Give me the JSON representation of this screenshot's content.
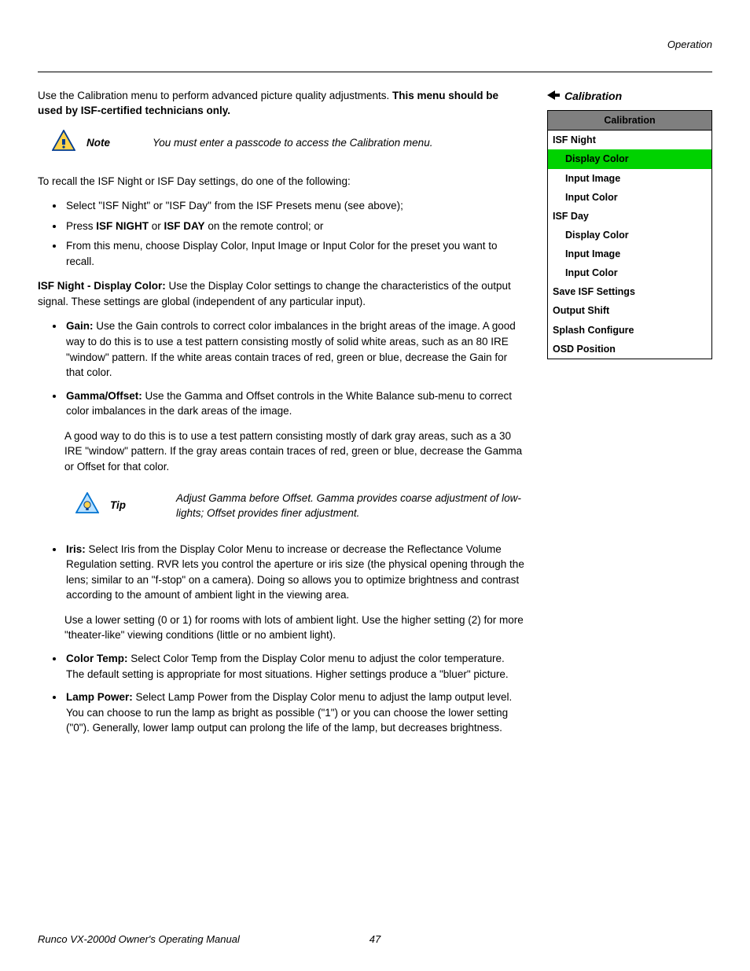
{
  "header": {
    "section": "Operation"
  },
  "sideHeading": "Calibration",
  "menu": {
    "title": "Calibration",
    "items": [
      {
        "label": "ISF Night",
        "indent": 0,
        "highlight": false
      },
      {
        "label": "Display Color",
        "indent": 1,
        "highlight": true
      },
      {
        "label": "Input Image",
        "indent": 1,
        "highlight": false
      },
      {
        "label": "Input Color",
        "indent": 1,
        "highlight": false
      },
      {
        "label": "ISF Day",
        "indent": 0,
        "highlight": false
      },
      {
        "label": "Display Color",
        "indent": 1,
        "highlight": false
      },
      {
        "label": "Input Image",
        "indent": 1,
        "highlight": false
      },
      {
        "label": "Input Color",
        "indent": 1,
        "highlight": false
      },
      {
        "label": "Save ISF Settings",
        "indent": 0,
        "highlight": false
      },
      {
        "label": "Output Shift",
        "indent": 0,
        "highlight": false
      },
      {
        "label": "Splash Configure",
        "indent": 0,
        "highlight": false
      },
      {
        "label": "OSD Position",
        "indent": 0,
        "highlight": false
      }
    ]
  },
  "intro": {
    "lead": "Use the Calibration menu to perform advanced picture quality adjustments. ",
    "bold": "This menu should be used by ISF-certified technicians only."
  },
  "note": {
    "label": "Note",
    "text": "You must enter a passcode to access the Calibration menu."
  },
  "recall": {
    "lead": "To recall the ISF Night or ISF Day settings, do one of the following:",
    "b1": "Select \"ISF Night\" or \"ISF Day\" from the ISF Presets menu (see above);",
    "b2a": "Press ",
    "b2b1": "ISF NIGHT",
    "b2c": " or ",
    "b2b2": "ISF DAY",
    "b2d": " on the remote control; or",
    "b3": "From this menu, choose Display Color, Input Image or Input Color for the preset you want to recall."
  },
  "isfNight": {
    "heading": "ISF Night - Display Color: ",
    "text": "Use the Display Color settings to change the characteristics of the output signal. These settings are global (independent of any particular input)."
  },
  "gain": {
    "heading": "Gain: ",
    "text": "Use the Gain controls to correct color imbalances in the bright areas of the image. A good way to do this is to use a test pattern consisting mostly of solid white areas, such as an 80 IRE \"window\" pattern. If the white areas contain traces of red, green or blue, decrease the Gain for that color."
  },
  "gamma": {
    "heading": "Gamma/Offset: ",
    "text": "Use the Gamma and Offset controls in the White Balance sub-menu to correct color imbalances in the dark areas of the image.",
    "para2": "A good way to do this is to use a test pattern consisting mostly of dark gray areas, such as a 30 IRE \"window\" pattern. If the gray areas contain traces of red, green or blue, decrease the Gamma or Offset for that color."
  },
  "tip": {
    "label": "Tip",
    "text": "Adjust Gamma before Offset. Gamma provides coarse adjustment of low-lights; Offset provides finer adjustment."
  },
  "iris": {
    "heading": "Iris: ",
    "text": "Select Iris from the Display Color Menu to increase or decrease the Reflectance Volume Regulation setting. RVR lets you control the aperture or iris size (the physical opening through the lens; similar to an \"f-stop\" on a camera). Doing so allows you to optimize brightness and contrast according to the amount of ambient light in the viewing area.",
    "para2": "Use a lower setting (0 or 1) for rooms with lots of ambient light. Use the higher setting (2) for more \"theater-like\" viewing conditions (little or no ambient light)."
  },
  "colorTemp": {
    "heading": "Color Temp: ",
    "text": "Select Color Temp from the Display Color menu to adjust the color temperature. The default setting is appropriate for most situations. Higher settings produce a \"bluer\" picture."
  },
  "lampPower": {
    "heading": "Lamp Power: ",
    "text": "Select Lamp Power from the Display Color menu to adjust the lamp output level. You can choose to run the lamp as bright as possible (\"1\") or you can choose the lower setting (\"0\"). Generally, lower lamp output can prolong the life of the lamp, but decreases brightness."
  },
  "footer": {
    "title": "Runco VX-2000d Owner's Operating Manual",
    "page": "47"
  },
  "colors": {
    "menuHeaderBg": "#7f7f7f",
    "highlightBg": "#00d200",
    "noteStroke": "#003b8f",
    "noteFill": "#ffd24a",
    "tipStroke": "#0073d1",
    "tipFill": "#b9e1ff"
  }
}
